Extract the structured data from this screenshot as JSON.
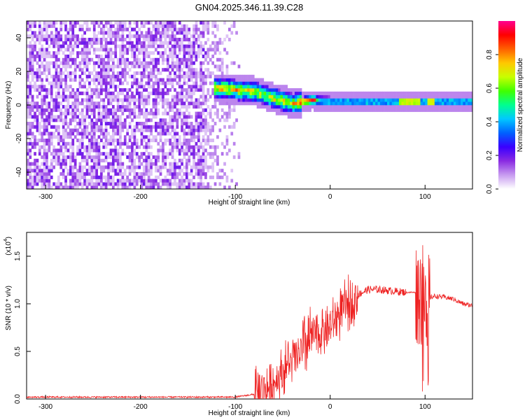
{
  "title": "GN04.2025.346.11.39.C28",
  "colors": {
    "snr_line": "#ee2222",
    "colormap": [
      "#ffffff",
      "#c89cf0",
      "#8a2be2",
      "#3a00ff",
      "#0060ff",
      "#00c8ff",
      "#00ff90",
      "#40ff00",
      "#c8ff00",
      "#ffc800",
      "#ff6000",
      "#ff0000",
      "#ff0090"
    ]
  },
  "chart_data": [
    {
      "type": "heatmap",
      "name": "spectrogram",
      "xlabel": "Height of straight line (km)",
      "ylabel": "Frequency (Hz)",
      "xlim": [
        -320,
        150
      ],
      "ylim": [
        -50,
        50
      ],
      "xticks": [
        -300,
        -200,
        -100,
        0,
        100
      ],
      "yticks": [
        -40,
        -20,
        0,
        20,
        40
      ],
      "ridge": [
        {
          "x": -120,
          "y": 9
        },
        {
          "x": -100,
          "y": 8
        },
        {
          "x": -80,
          "y": 7
        },
        {
          "x": -60,
          "y": 3
        },
        {
          "x": -40,
          "y": 0
        },
        {
          "x": -20,
          "y": 2
        },
        {
          "x": 0,
          "y": 1
        },
        {
          "x": 50,
          "y": 1
        },
        {
          "x": 100,
          "y": 1
        },
        {
          "x": 150,
          "y": 1
        }
      ],
      "colorbar": {
        "label": "Normalized spectral amplitude",
        "range": [
          0,
          1
        ],
        "ticks": [
          "0.0",
          "0.2",
          "0.4",
          "0.6",
          "0.8"
        ]
      }
    },
    {
      "type": "line",
      "name": "snr",
      "xlabel": "Height of straight line (km)",
      "ylabel": "SNR (10 * v/v)",
      "yscale_label": "(x10",
      "yscale_exp": "4",
      "xlim": [
        -320,
        150
      ],
      "ylim": [
        0,
        1.75
      ],
      "xticks": [
        -300,
        -200,
        -100,
        0,
        100
      ],
      "yticks": [
        "0.0",
        "0.5",
        "1.0",
        "1.5"
      ],
      "series": [
        {
          "x": [
            -320,
            -200,
            -120,
            -100,
            -80,
            -60,
            -50,
            -40,
            -30,
            -20,
            -10,
            0,
            10,
            20,
            30,
            40,
            50,
            60,
            70,
            80,
            90,
            95,
            100,
            110,
            120,
            130,
            140,
            150
          ],
          "y": [
            0.02,
            0.02,
            0.02,
            0.02,
            0.05,
            0.15,
            0.3,
            0.4,
            0.5,
            0.65,
            0.7,
            0.75,
            0.9,
            1.0,
            1.1,
            1.15,
            1.15,
            1.14,
            1.13,
            1.12,
            1.12,
            1.1,
            1.05,
            1.08,
            1.07,
            1.05,
            1.0,
            0.98
          ]
        }
      ]
    }
  ]
}
